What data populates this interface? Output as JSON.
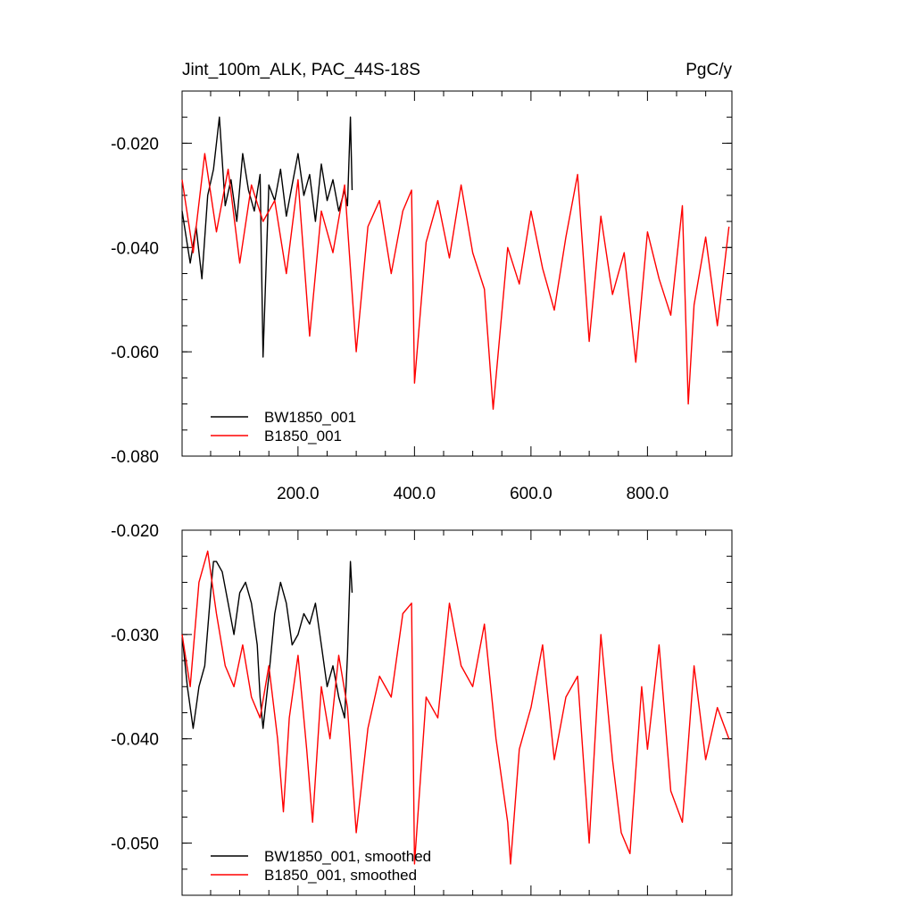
{
  "chart_data": [
    {
      "type": "line",
      "title": "Jint_100m_ALK, PAC_44S-18S",
      "units": "PgC/y",
      "xlabel": "",
      "ylabel": "",
      "xlim": [
        1,
        945
      ],
      "ylim": [
        -0.08,
        -0.01
      ],
      "xticks": [
        200,
        400,
        600,
        800
      ],
      "xtick_labels": [
        "200.0",
        "400.0",
        "600.0",
        "800.0"
      ],
      "yticks": [
        -0.08,
        -0.06,
        -0.04,
        -0.02
      ],
      "ytick_labels": [
        "-0.080",
        "-0.060",
        "-0.040",
        "-0.020"
      ],
      "grid": false,
      "legend_position": "bottom-left",
      "series": [
        {
          "name": "BW1850_001",
          "color": "#000000",
          "x": [
            1,
            15,
            25,
            35,
            45,
            55,
            65,
            75,
            85,
            95,
            105,
            115,
            125,
            135,
            140,
            150,
            160,
            170,
            180,
            190,
            200,
            210,
            220,
            230,
            240,
            250,
            260,
            270,
            280,
            285,
            290,
            293
          ],
          "y": [
            -0.033,
            -0.043,
            -0.036,
            -0.046,
            -0.03,
            -0.025,
            -0.015,
            -0.032,
            -0.027,
            -0.035,
            -0.022,
            -0.029,
            -0.033,
            -0.026,
            -0.061,
            -0.028,
            -0.031,
            -0.025,
            -0.034,
            -0.028,
            -0.022,
            -0.03,
            -0.026,
            -0.035,
            -0.024,
            -0.031,
            -0.027,
            -0.033,
            -0.029,
            -0.032,
            -0.015,
            -0.029
          ]
        },
        {
          "name": "B1850_001",
          "color": "#ff0000",
          "x": [
            1,
            20,
            40,
            60,
            80,
            100,
            120,
            140,
            160,
            180,
            200,
            220,
            240,
            260,
            280,
            300,
            320,
            340,
            360,
            380,
            395,
            400,
            420,
            440,
            460,
            480,
            500,
            520,
            535,
            560,
            580,
            600,
            620,
            640,
            660,
            680,
            700,
            720,
            740,
            760,
            780,
            800,
            820,
            840,
            860,
            870,
            880,
            900,
            920,
            940
          ],
          "y": [
            -0.027,
            -0.041,
            -0.022,
            -0.037,
            -0.025,
            -0.043,
            -0.028,
            -0.035,
            -0.031,
            -0.045,
            -0.027,
            -0.057,
            -0.033,
            -0.041,
            -0.028,
            -0.06,
            -0.036,
            -0.031,
            -0.045,
            -0.033,
            -0.029,
            -0.066,
            -0.039,
            -0.031,
            -0.042,
            -0.028,
            -0.041,
            -0.048,
            -0.071,
            -0.04,
            -0.047,
            -0.033,
            -0.044,
            -0.052,
            -0.038,
            -0.026,
            -0.058,
            -0.034,
            -0.049,
            -0.041,
            -0.062,
            -0.037,
            -0.046,
            -0.053,
            -0.032,
            -0.07,
            -0.051,
            -0.038,
            -0.055,
            -0.036
          ]
        }
      ]
    },
    {
      "type": "line",
      "title": "",
      "xlabel": "",
      "ylabel": "",
      "xlim": [
        1,
        945
      ],
      "ylim": [
        -0.055,
        -0.02
      ],
      "xticks": [
        200,
        400,
        600,
        800
      ],
      "xtick_labels": [],
      "yticks": [
        -0.05,
        -0.04,
        -0.03,
        -0.02
      ],
      "ytick_labels": [
        "-0.050",
        "-0.040",
        "-0.030",
        "-0.020"
      ],
      "grid": false,
      "legend_position": "bottom-left",
      "series": [
        {
          "name": "BW1850_001, smoothed",
          "color": "#000000",
          "x": [
            1,
            10,
            20,
            25,
            30,
            40,
            50,
            55,
            60,
            70,
            80,
            90,
            100,
            110,
            120,
            130,
            135,
            140,
            150,
            160,
            170,
            180,
            190,
            200,
            210,
            220,
            230,
            240,
            250,
            260,
            270,
            280,
            285,
            290,
            293
          ],
          "y": [
            -0.03,
            -0.035,
            -0.039,
            -0.037,
            -0.035,
            -0.033,
            -0.026,
            -0.023,
            -0.023,
            -0.024,
            -0.027,
            -0.03,
            -0.026,
            -0.025,
            -0.027,
            -0.031,
            -0.036,
            -0.039,
            -0.034,
            -0.028,
            -0.025,
            -0.027,
            -0.031,
            -0.03,
            -0.028,
            -0.029,
            -0.027,
            -0.031,
            -0.035,
            -0.033,
            -0.036,
            -0.038,
            -0.032,
            -0.023,
            -0.026
          ]
        },
        {
          "name": "B1850_001, smoothed",
          "color": "#ff0000",
          "x": [
            1,
            15,
            30,
            45,
            55,
            60,
            75,
            90,
            105,
            120,
            135,
            150,
            165,
            175,
            185,
            200,
            215,
            225,
            240,
            255,
            270,
            285,
            300,
            320,
            340,
            360,
            380,
            395,
            400,
            420,
            440,
            460,
            480,
            500,
            520,
            540,
            560,
            565,
            580,
            600,
            620,
            640,
            660,
            680,
            700,
            720,
            740,
            755,
            770,
            790,
            800,
            820,
            840,
            860,
            880,
            900,
            920,
            940
          ],
          "y": [
            -0.03,
            -0.035,
            -0.025,
            -0.022,
            -0.026,
            -0.028,
            -0.033,
            -0.035,
            -0.031,
            -0.036,
            -0.038,
            -0.033,
            -0.04,
            -0.047,
            -0.038,
            -0.032,
            -0.041,
            -0.048,
            -0.035,
            -0.04,
            -0.032,
            -0.037,
            -0.049,
            -0.039,
            -0.034,
            -0.036,
            -0.028,
            -0.027,
            -0.052,
            -0.036,
            -0.038,
            -0.027,
            -0.033,
            -0.035,
            -0.029,
            -0.04,
            -0.048,
            -0.052,
            -0.041,
            -0.037,
            -0.031,
            -0.042,
            -0.036,
            -0.034,
            -0.05,
            -0.03,
            -0.042,
            -0.049,
            -0.051,
            -0.035,
            -0.041,
            -0.031,
            -0.045,
            -0.048,
            -0.033,
            -0.042,
            -0.037,
            -0.04
          ]
        }
      ]
    }
  ]
}
